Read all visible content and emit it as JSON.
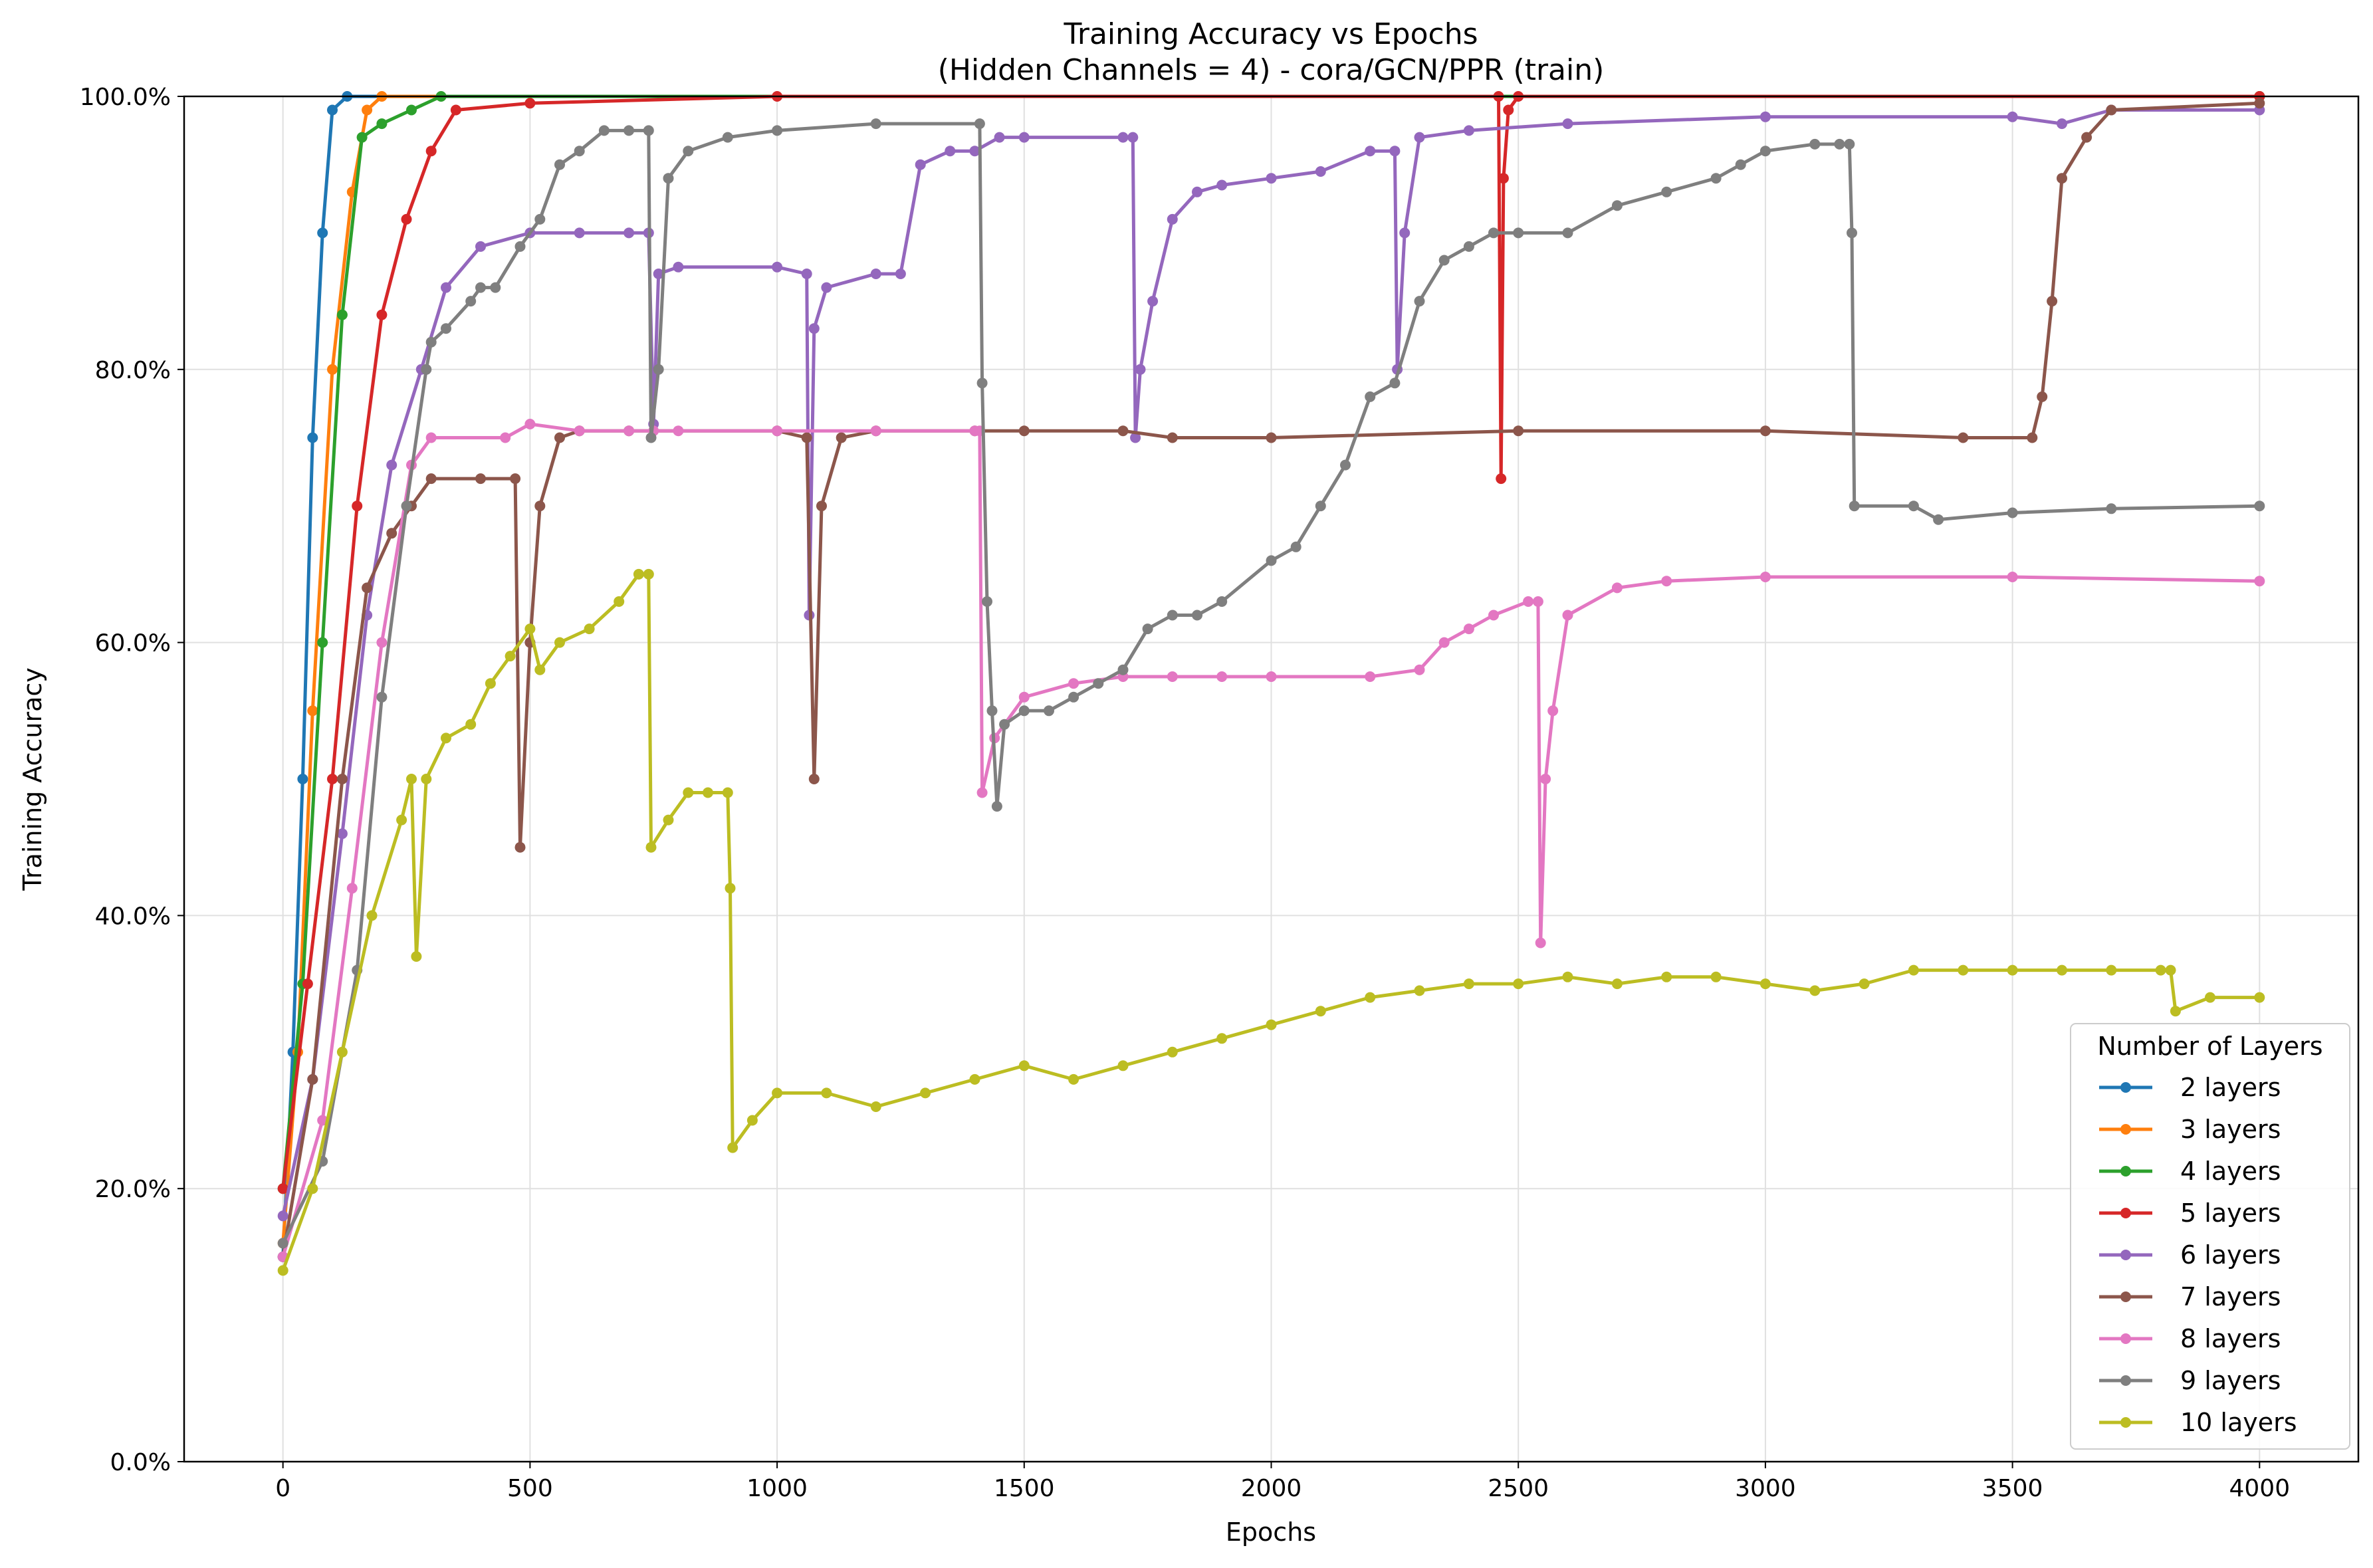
{
  "chart_data": {
    "type": "line",
    "title": "Training Accuracy vs Epochs",
    "subtitle": "(Hidden Channels = 4) - cora/GCN/PPR (train)",
    "xlabel": "Epochs",
    "ylabel": "Training Accuracy",
    "xlim": [
      -200,
      4200
    ],
    "ylim": [
      0,
      100
    ],
    "xticks": [
      0,
      500,
      1000,
      1500,
      2000,
      2500,
      3000,
      3500,
      4000
    ],
    "xtick_labels": [
      "0",
      "500",
      "1000",
      "1500",
      "2000",
      "2500",
      "3000",
      "3500",
      "4000"
    ],
    "yticks": [
      0,
      20,
      40,
      60,
      80,
      100
    ],
    "ytick_labels": [
      "0.0%",
      "20.0%",
      "40.0%",
      "60.0%",
      "80.0%",
      "100.0%"
    ],
    "grid": true,
    "legend_title": "Number of Layers",
    "legend_position": "lower-right",
    "series": [
      {
        "name": "2 layers",
        "color": "#1f77b4",
        "points": [
          [
            0,
            15
          ],
          [
            20,
            30
          ],
          [
            40,
            50
          ],
          [
            60,
            75
          ],
          [
            80,
            90
          ],
          [
            100,
            99
          ],
          [
            130,
            100
          ],
          [
            4000,
            100
          ]
        ]
      },
      {
        "name": "3 layers",
        "color": "#ff7f0e",
        "points": [
          [
            0,
            16
          ],
          [
            30,
            30
          ],
          [
            60,
            55
          ],
          [
            100,
            80
          ],
          [
            140,
            93
          ],
          [
            170,
            99
          ],
          [
            200,
            100
          ],
          [
            4000,
            100
          ]
        ]
      },
      {
        "name": "4 layers",
        "color": "#2ca02c",
        "points": [
          [
            0,
            20
          ],
          [
            40,
            35
          ],
          [
            80,
            60
          ],
          [
            120,
            84
          ],
          [
            160,
            97
          ],
          [
            200,
            98
          ],
          [
            260,
            99
          ],
          [
            320,
            100
          ],
          [
            4000,
            100
          ]
        ]
      },
      {
        "name": "5 layers",
        "color": "#d62728",
        "points": [
          [
            0,
            20
          ],
          [
            50,
            35
          ],
          [
            100,
            50
          ],
          [
            150,
            70
          ],
          [
            200,
            84
          ],
          [
            250,
            91
          ],
          [
            300,
            96
          ],
          [
            350,
            99
          ],
          [
            500,
            99.5
          ],
          [
            1000,
            100
          ],
          [
            2460,
            100
          ],
          [
            2465,
            72
          ],
          [
            2470,
            94
          ],
          [
            2480,
            99
          ],
          [
            2500,
            100
          ],
          [
            4000,
            100
          ]
        ]
      },
      {
        "name": "6 layers",
        "color": "#9467bd",
        "points": [
          [
            0,
            18
          ],
          [
            60,
            28
          ],
          [
            120,
            46
          ],
          [
            170,
            62
          ],
          [
            220,
            73
          ],
          [
            280,
            80
          ],
          [
            330,
            86
          ],
          [
            400,
            89
          ],
          [
            500,
            90
          ],
          [
            600,
            90
          ],
          [
            700,
            90
          ],
          [
            740,
            90
          ],
          [
            750,
            76
          ],
          [
            760,
            87
          ],
          [
            800,
            87.5
          ],
          [
            1000,
            87.5
          ],
          [
            1060,
            87
          ],
          [
            1065,
            62
          ],
          [
            1075,
            83
          ],
          [
            1100,
            86
          ],
          [
            1200,
            87
          ],
          [
            1250,
            87
          ],
          [
            1290,
            95
          ],
          [
            1350,
            96
          ],
          [
            1400,
            96
          ],
          [
            1450,
            97
          ],
          [
            1500,
            97
          ],
          [
            1700,
            97
          ],
          [
            1720,
            97
          ],
          [
            1725,
            75
          ],
          [
            1735,
            80
          ],
          [
            1760,
            85
          ],
          [
            1800,
            91
          ],
          [
            1850,
            93
          ],
          [
            1900,
            93.5
          ],
          [
            2000,
            94
          ],
          [
            2100,
            94.5
          ],
          [
            2200,
            96
          ],
          [
            2250,
            96
          ],
          [
            2255,
            80
          ],
          [
            2270,
            90
          ],
          [
            2300,
            97
          ],
          [
            2400,
            97.5
          ],
          [
            2600,
            98
          ],
          [
            3000,
            98.5
          ],
          [
            3500,
            98.5
          ],
          [
            3600,
            98
          ],
          [
            3700,
            99
          ],
          [
            4000,
            99
          ]
        ]
      },
      {
        "name": "7 layers",
        "color": "#8c564b",
        "points": [
          [
            0,
            15
          ],
          [
            60,
            28
          ],
          [
            120,
            50
          ],
          [
            170,
            64
          ],
          [
            220,
            68
          ],
          [
            260,
            70
          ],
          [
            300,
            72
          ],
          [
            400,
            72
          ],
          [
            470,
            72
          ],
          [
            480,
            45
          ],
          [
            500,
            60
          ],
          [
            520,
            70
          ],
          [
            560,
            75
          ],
          [
            600,
            75.5
          ],
          [
            700,
            75.5
          ],
          [
            1000,
            75.5
          ],
          [
            1060,
            75
          ],
          [
            1075,
            50
          ],
          [
            1090,
            70
          ],
          [
            1130,
            75
          ],
          [
            1200,
            75.5
          ],
          [
            1400,
            75.5
          ],
          [
            1500,
            75.5
          ],
          [
            1700,
            75.5
          ],
          [
            1800,
            75
          ],
          [
            2000,
            75
          ],
          [
            2500,
            75.5
          ],
          [
            3000,
            75.5
          ],
          [
            3400,
            75
          ],
          [
            3540,
            75
          ],
          [
            3560,
            78
          ],
          [
            3580,
            85
          ],
          [
            3600,
            94
          ],
          [
            3650,
            97
          ],
          [
            3700,
            99
          ],
          [
            4000,
            99.5
          ]
        ]
      },
      {
        "name": "8 layers",
        "color": "#e377c2",
        "points": [
          [
            0,
            15
          ],
          [
            80,
            25
          ],
          [
            140,
            42
          ],
          [
            200,
            60
          ],
          [
            260,
            73
          ],
          [
            300,
            75
          ],
          [
            450,
            75
          ],
          [
            500,
            76
          ],
          [
            600,
            75.5
          ],
          [
            700,
            75.5
          ],
          [
            750,
            75.5
          ],
          [
            800,
            75.5
          ],
          [
            1000,
            75.5
          ],
          [
            1200,
            75.5
          ],
          [
            1400,
            75.5
          ],
          [
            1410,
            75.5
          ],
          [
            1415,
            49
          ],
          [
            1440,
            53
          ],
          [
            1500,
            56
          ],
          [
            1600,
            57
          ],
          [
            1700,
            57.5
          ],
          [
            1800,
            57.5
          ],
          [
            1900,
            57.5
          ],
          [
            2000,
            57.5
          ],
          [
            2200,
            57.5
          ],
          [
            2300,
            58
          ],
          [
            2350,
            60
          ],
          [
            2400,
            61
          ],
          [
            2450,
            62
          ],
          [
            2520,
            63
          ],
          [
            2540,
            63
          ],
          [
            2545,
            38
          ],
          [
            2555,
            50
          ],
          [
            2570,
            55
          ],
          [
            2600,
            62
          ],
          [
            2700,
            64
          ],
          [
            2800,
            64.5
          ],
          [
            3000,
            64.8
          ],
          [
            3500,
            64.8
          ],
          [
            4000,
            64.5
          ]
        ]
      },
      {
        "name": "9 layers",
        "color": "#7f7f7f",
        "points": [
          [
            0,
            16
          ],
          [
            80,
            22
          ],
          [
            150,
            36
          ],
          [
            200,
            56
          ],
          [
            250,
            70
          ],
          [
            290,
            80
          ],
          [
            300,
            82
          ],
          [
            330,
            83
          ],
          [
            380,
            85
          ],
          [
            400,
            86
          ],
          [
            430,
            86
          ],
          [
            480,
            89
          ],
          [
            520,
            91
          ],
          [
            560,
            95
          ],
          [
            600,
            96
          ],
          [
            650,
            97.5
          ],
          [
            700,
            97.5
          ],
          [
            740,
            97.5
          ],
          [
            745,
            75
          ],
          [
            760,
            80
          ],
          [
            780,
            94
          ],
          [
            820,
            96
          ],
          [
            900,
            97
          ],
          [
            1000,
            97.5
          ],
          [
            1200,
            98
          ],
          [
            1410,
            98
          ],
          [
            1415,
            79
          ],
          [
            1425,
            63
          ],
          [
            1435,
            55
          ],
          [
            1445,
            48
          ],
          [
            1460,
            54
          ],
          [
            1500,
            55
          ],
          [
            1550,
            55
          ],
          [
            1600,
            56
          ],
          [
            1650,
            57
          ],
          [
            1700,
            58
          ],
          [
            1750,
            61
          ],
          [
            1800,
            62
          ],
          [
            1850,
            62
          ],
          [
            1900,
            63
          ],
          [
            2000,
            66
          ],
          [
            2050,
            67
          ],
          [
            2100,
            70
          ],
          [
            2150,
            73
          ],
          [
            2200,
            78
          ],
          [
            2250,
            79
          ],
          [
            2300,
            85
          ],
          [
            2350,
            88
          ],
          [
            2400,
            89
          ],
          [
            2450,
            90
          ],
          [
            2500,
            90
          ],
          [
            2600,
            90
          ],
          [
            2700,
            92
          ],
          [
            2800,
            93
          ],
          [
            2900,
            94
          ],
          [
            2950,
            95
          ],
          [
            3000,
            96
          ],
          [
            3100,
            96.5
          ],
          [
            3150,
            96.5
          ],
          [
            3170,
            96.5
          ],
          [
            3175,
            90
          ],
          [
            3180,
            70
          ],
          [
            3300,
            70
          ],
          [
            3350,
            69
          ],
          [
            3500,
            69.5
          ],
          [
            3700,
            69.8
          ],
          [
            4000,
            70
          ]
        ]
      },
      {
        "name": "10 layers",
        "color": "#bcbd22",
        "points": [
          [
            0,
            14
          ],
          [
            60,
            20
          ],
          [
            120,
            30
          ],
          [
            180,
            40
          ],
          [
            240,
            47
          ],
          [
            260,
            50
          ],
          [
            270,
            37
          ],
          [
            290,
            50
          ],
          [
            330,
            53
          ],
          [
            380,
            54
          ],
          [
            420,
            57
          ],
          [
            460,
            59
          ],
          [
            500,
            61
          ],
          [
            520,
            58
          ],
          [
            560,
            60
          ],
          [
            620,
            61
          ],
          [
            680,
            63
          ],
          [
            720,
            65
          ],
          [
            740,
            65
          ],
          [
            745,
            45
          ],
          [
            780,
            47
          ],
          [
            820,
            49
          ],
          [
            860,
            49
          ],
          [
            900,
            49
          ],
          [
            905,
            42
          ],
          [
            910,
            23
          ],
          [
            950,
            25
          ],
          [
            1000,
            27
          ],
          [
            1100,
            27
          ],
          [
            1200,
            26
          ],
          [
            1300,
            27
          ],
          [
            1400,
            28
          ],
          [
            1500,
            29
          ],
          [
            1600,
            28
          ],
          [
            1700,
            29
          ],
          [
            1800,
            30
          ],
          [
            1900,
            31
          ],
          [
            2000,
            32
          ],
          [
            2100,
            33
          ],
          [
            2200,
            34
          ],
          [
            2300,
            34.5
          ],
          [
            2400,
            35
          ],
          [
            2500,
            35
          ],
          [
            2600,
            35.5
          ],
          [
            2700,
            35
          ],
          [
            2800,
            35.5
          ],
          [
            2900,
            35.5
          ],
          [
            3000,
            35
          ],
          [
            3100,
            34.5
          ],
          [
            3200,
            35
          ],
          [
            3300,
            36
          ],
          [
            3400,
            36
          ],
          [
            3500,
            36
          ],
          [
            3600,
            36
          ],
          [
            3700,
            36
          ],
          [
            3800,
            36
          ],
          [
            3820,
            36
          ],
          [
            3830,
            33
          ],
          [
            3900,
            34
          ],
          [
            4000,
            34
          ]
        ]
      }
    ]
  }
}
